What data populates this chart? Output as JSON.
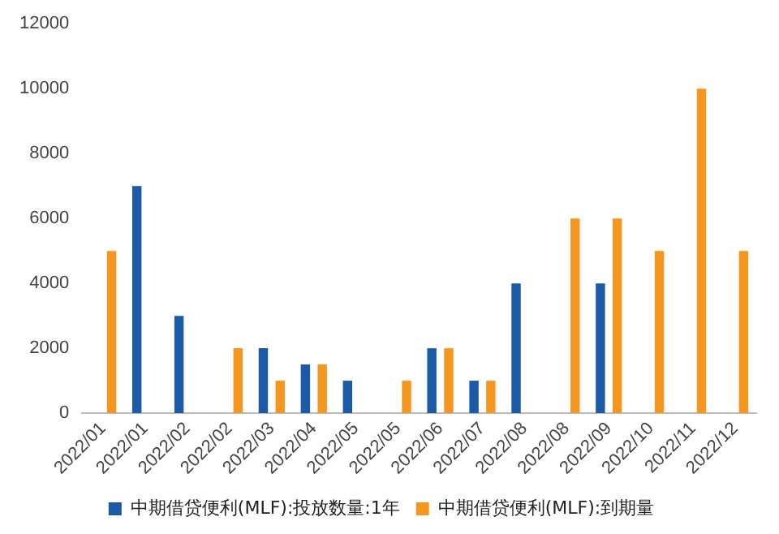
{
  "chart_data": {
    "type": "bar",
    "categories": [
      "2022/01",
      "2022/01",
      "2022/02",
      "2022/02",
      "2022/03",
      "2022/04",
      "2022/05",
      "2022/05",
      "2022/06",
      "2022/07",
      "2022/08",
      "2022/08",
      "2022/09",
      "2022/10",
      "2022/11",
      "2022/12"
    ],
    "series": [
      {
        "name": "中期借贷便利(MLF):投放数量:1年",
        "color": "#1a5aa6",
        "values": [
          null,
          7000,
          3000,
          null,
          2000,
          1500,
          1000,
          null,
          2000,
          1000,
          4000,
          null,
          4000,
          null,
          null,
          null
        ]
      },
      {
        "name": "中期借贷便利(MLF):到期量",
        "color": "#f5961f",
        "values": [
          5000,
          null,
          null,
          2000,
          1000,
          1500,
          null,
          1000,
          2000,
          1000,
          null,
          6000,
          6000,
          5000,
          10000,
          5000
        ]
      }
    ],
    "ylim": [
      0,
      12000
    ],
    "yticks": [
      0,
      2000,
      4000,
      6000,
      8000,
      10000,
      12000
    ],
    "grid": false,
    "legend": "bottom"
  }
}
